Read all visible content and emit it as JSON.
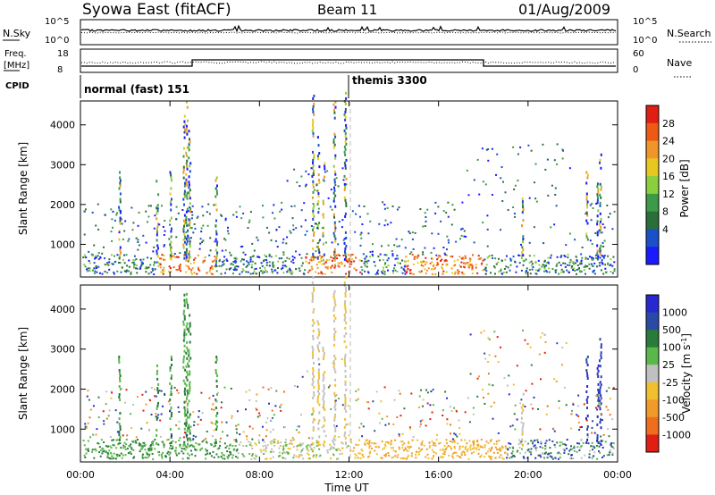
{
  "header": {
    "title": "Syowa East (fitACF)",
    "beam": "Beam 11",
    "date": "01/Aug/2009"
  },
  "status_panels": {
    "nsky_label": "N.Sky",
    "nsky_ticks": [
      "10^5",
      "10^0"
    ],
    "nsearch_label": "N.Search",
    "nsearch_ticks": [
      "10^5",
      "10^0"
    ],
    "freq_label_1": "Freq.",
    "freq_label_2": "[MHz]",
    "freq_ticks": [
      "18",
      "8"
    ],
    "nave_label": "Nave",
    "nave_ticks": [
      "60",
      "0"
    ],
    "cpid_label": "CPID",
    "cpid_1": "normal (fast) 151",
    "cpid_2": "themis 3300"
  },
  "chart_data": [
    {
      "type": "heatmap",
      "name": "power",
      "ylabel": "Slant Range [km]",
      "yticks": [
        "4000",
        "3000",
        "2000",
        "1000"
      ],
      "ylim": [
        180,
        4600
      ],
      "colorbar_label": "Power [dB]",
      "colorbar_ticks": [
        "28",
        "24",
        "20",
        "16",
        "12",
        "8",
        "4"
      ],
      "colors": [
        "#1a1aff",
        "#1a50c8",
        "#2a6e3a",
        "#3c9a48",
        "#8ad03c",
        "#e8c81e",
        "#f09628",
        "#ee5a14",
        "#e01e14"
      ]
    },
    {
      "type": "heatmap",
      "name": "velocity",
      "ylabel": "Slant Range [km]",
      "yticks": [
        "4000",
        "3000",
        "2000",
        "1000"
      ],
      "ylim": [
        180,
        4600
      ],
      "colorbar_label": "Velocity [m s^-1]",
      "colorbar_ticks": [
        "1000",
        "500",
        "100",
        "25",
        "-25",
        "-100",
        "-500",
        "-1000"
      ],
      "colors": [
        "#2828d0",
        "#2a4aa8",
        "#2a7a3a",
        "#5ab84a",
        "#c0c0c0",
        "#f0c030",
        "#f09a2a",
        "#ee6e1e",
        "#e01e14"
      ]
    }
  ],
  "x_axis": {
    "label": "Time UT",
    "ticks": [
      "00:00",
      "04:00",
      "08:00",
      "12:00",
      "16:00",
      "20:00",
      "00:00"
    ]
  }
}
